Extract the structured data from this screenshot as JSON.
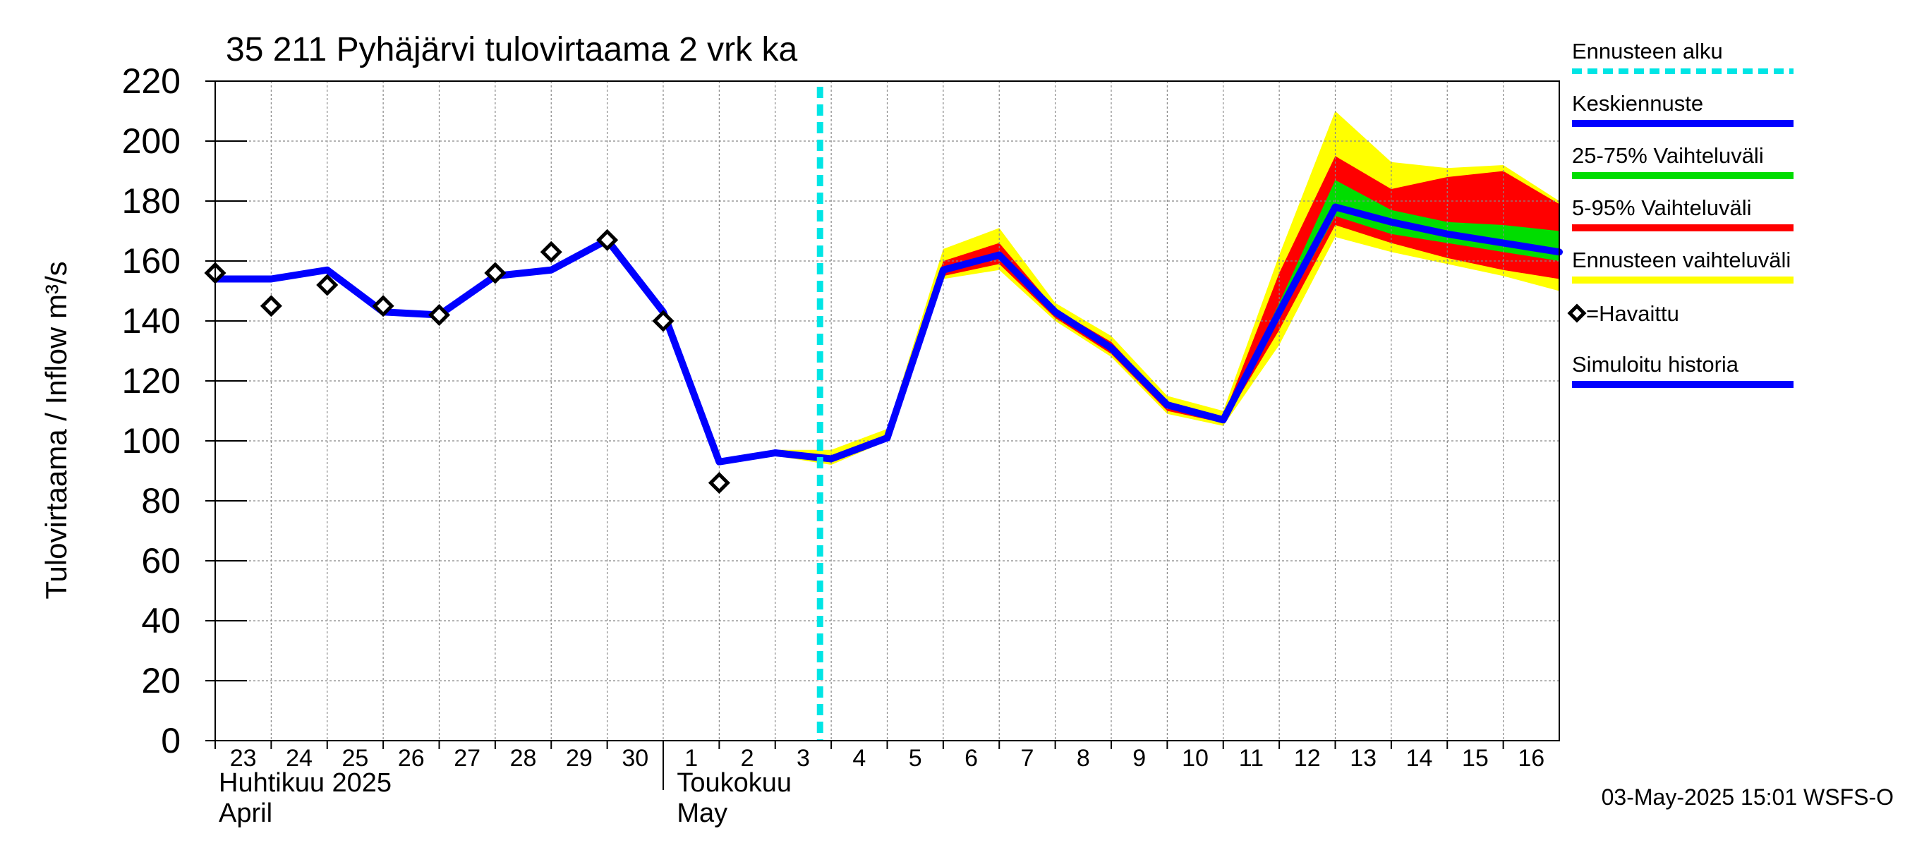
{
  "chart_data": {
    "type": "line",
    "title": "35 211 Pyhäjärvi tulovirtaama 2 vrk ka",
    "ylabel": "Tulovirtaama / Inflow    m³/s",
    "ylim": [
      0,
      220
    ],
    "yticks": [
      0,
      20,
      40,
      60,
      80,
      100,
      120,
      140,
      160,
      180,
      200,
      220
    ],
    "grid": true,
    "legend_position": "right",
    "x_day_labels": [
      "23",
      "24",
      "25",
      "26",
      "27",
      "28",
      "29",
      "30",
      "1",
      "2",
      "3",
      "4",
      "5",
      "6",
      "7",
      "8",
      "9",
      "10",
      "11",
      "12",
      "13",
      "14",
      "15",
      "16"
    ],
    "month_labels": [
      {
        "fi": "Huhtikuu  2025",
        "en": "April"
      },
      {
        "fi": "Toukokuu",
        "en": "May"
      }
    ],
    "forecast_start_day": 10.8,
    "series": [
      {
        "name": "Simuloitu historia",
        "color": "#0000ff",
        "x": [
          0,
          1,
          2,
          3,
          4,
          5,
          6,
          7,
          8,
          9,
          10
        ],
        "values": [
          154,
          154,
          157,
          143,
          142,
          155,
          157,
          167,
          143,
          93,
          96
        ]
      },
      {
        "name": "=Havaittu",
        "color": "#000000",
        "marker": "diamond",
        "x": [
          0,
          1,
          2,
          3,
          4,
          5,
          6,
          7,
          8,
          9
        ],
        "values": [
          156,
          145,
          152,
          145,
          142,
          156,
          163,
          167,
          140,
          86
        ]
      },
      {
        "name": "Keskiennuste",
        "color": "#0000ff",
        "x": [
          10,
          11,
          12,
          13,
          14,
          15,
          16,
          17,
          18,
          19,
          20,
          21,
          22,
          23,
          24
        ],
        "values": [
          96,
          94,
          101,
          157,
          162,
          143,
          131,
          112,
          107,
          143,
          178,
          173,
          169,
          166,
          163
        ]
      }
    ],
    "bands": [
      {
        "name": "Ennusteen vaihteluväli",
        "color": "#ffff00",
        "x": [
          10,
          11,
          12,
          13,
          14,
          15,
          16,
          17,
          18,
          19,
          20,
          21,
          22,
          23,
          24
        ],
        "upper": [
          97,
          97,
          104,
          164,
          171,
          146,
          135,
          115,
          110,
          162,
          210,
          193,
          191,
          192,
          180
        ],
        "lower": [
          95,
          92,
          100,
          154,
          157,
          140,
          128,
          109,
          105,
          132,
          168,
          163,
          159,
          155,
          150
        ]
      },
      {
        "name": "5-95% Vaihteluväli",
        "color": "#ff0000",
        "x": [
          10,
          11,
          12,
          13,
          14,
          15,
          16,
          17,
          18,
          19,
          20,
          21,
          22,
          23,
          24
        ],
        "upper": [
          96,
          95,
          102,
          160,
          166,
          144,
          133,
          113,
          108,
          156,
          195,
          184,
          188,
          190,
          179
        ],
        "lower": [
          95,
          93,
          100,
          155,
          159,
          141,
          129,
          110,
          106,
          137,
          172,
          166,
          161,
          157,
          154
        ]
      },
      {
        "name": "25-75% Vaihteluväli",
        "color": "#00dd00",
        "x": [
          10,
          11,
          12,
          13,
          14,
          15,
          16,
          17,
          18,
          19,
          20,
          21,
          22,
          23,
          24
        ],
        "upper": [
          96,
          94,
          101,
          158,
          163,
          143,
          131,
          112,
          107,
          146,
          187,
          177,
          173,
          172,
          170
        ],
        "lower": [
          96,
          94,
          101,
          157,
          161,
          142,
          130,
          111,
          107,
          141,
          175,
          169,
          166,
          163,
          160
        ]
      }
    ],
    "legend": [
      {
        "label": "Ennusteen alku",
        "color": "#00e5e5",
        "style": "dashed"
      },
      {
        "label": "Keskiennuste",
        "color": "#0000ff",
        "style": "line"
      },
      {
        "label": "25-75% Vaihteluväli",
        "color": "#00dd00",
        "style": "line"
      },
      {
        "label": "5-95% Vaihteluväli",
        "color": "#ff0000",
        "style": "line"
      },
      {
        "label": "Ennusteen vaihteluväli",
        "color": "#ffff00",
        "style": "line"
      },
      {
        "label": "=Havaittu",
        "color": "#000000",
        "style": "diamond"
      },
      {
        "label": "Simuloitu historia",
        "color": "#0000ff",
        "style": "line"
      }
    ],
    "footer": "03-May-2025 15:01 WSFS-O"
  }
}
